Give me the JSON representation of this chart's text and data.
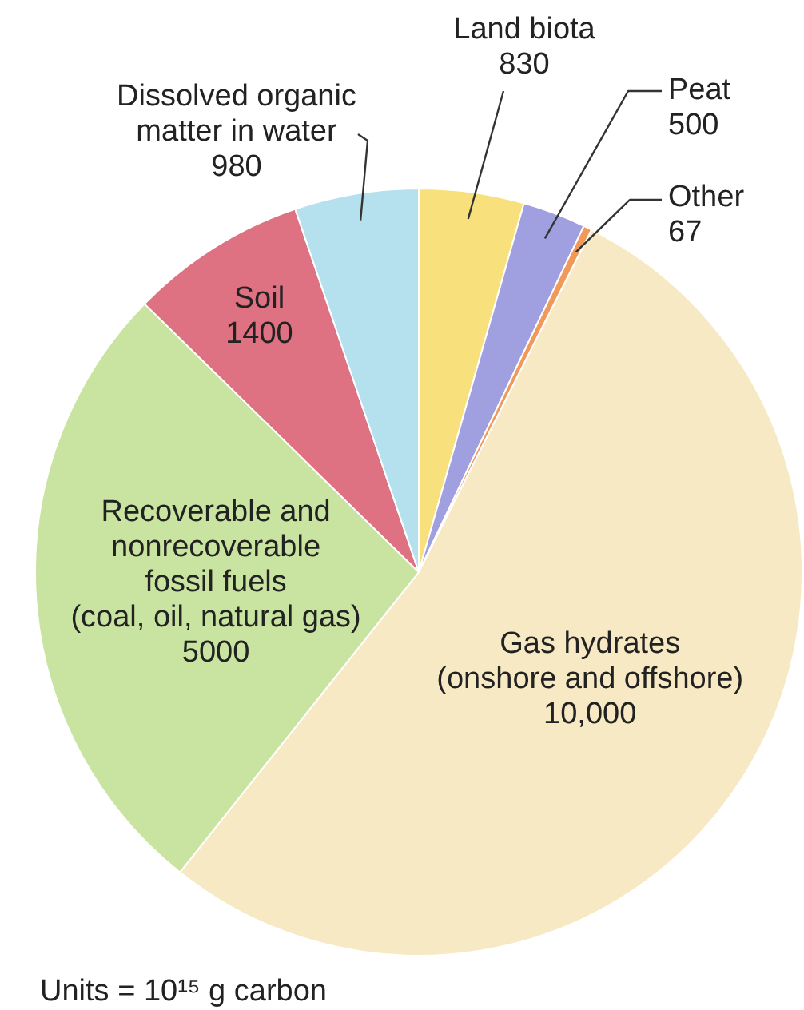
{
  "chart_data": {
    "type": "pie",
    "categories": [
      "Land biota",
      "Peat",
      "Other",
      "Gas hydrates (onshore and offshore)",
      "Recoverable and nonrecoverable fossil fuels (coal, oil, natural gas)",
      "Soil",
      "Dissolved organic matter in water"
    ],
    "values": [
      830,
      500,
      67,
      10000,
      5000,
      1400,
      980
    ],
    "value_labels": [
      "830",
      "500",
      "67",
      "10,000",
      "5000",
      "1400",
      "980"
    ],
    "colors": [
      "#f8e07c",
      "#a0a0e0",
      "#f2995a",
      "#f7e9c4",
      "#c9e3a0",
      "#df7282",
      "#b5e0ee"
    ],
    "annotations": [
      "Units = 10¹⁵ g carbon"
    ]
  }
}
